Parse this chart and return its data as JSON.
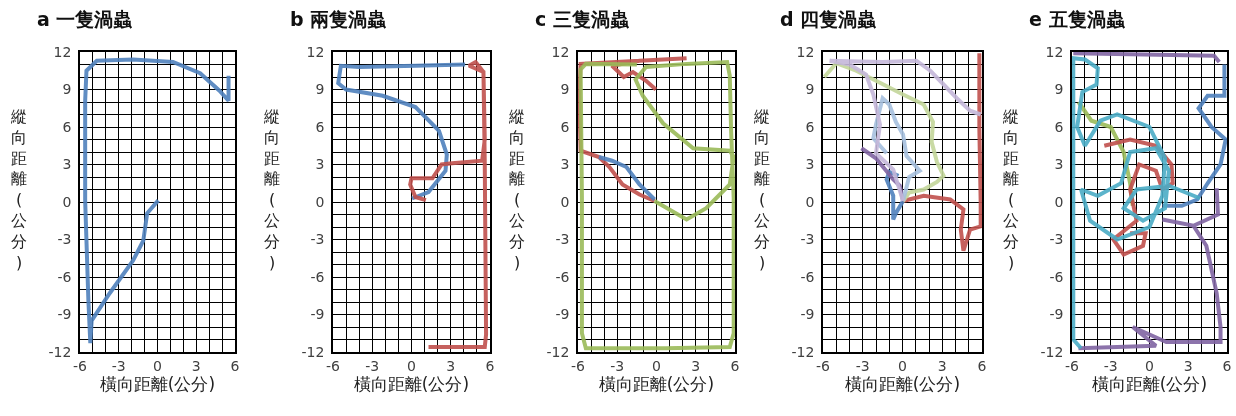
{
  "chart_data": [
    {
      "type": "line",
      "title": "a 一隻渦蟲",
      "xlabel": "橫向距離(公分)",
      "ylabel": "縱向距離(公分)",
      "xlim": [
        -6,
        6
      ],
      "ylim": [
        -12,
        12
      ],
      "xticks": [
        -6,
        -3,
        0,
        3,
        6
      ],
      "yticks": [
        -12,
        -9,
        -6,
        -3,
        0,
        3,
        6,
        9,
        12
      ],
      "grid": true,
      "series": [
        {
          "color": "#4f81bd",
          "x": [
            0.06,
            -0.8,
            -1.1,
            -1.9,
            -3.7,
            -5.1,
            -5.2,
            -5.35,
            -5.6,
            -5.6,
            -5.5,
            -4.7,
            -1.9,
            1.2,
            3.3,
            4.8,
            5.5,
            5.5
          ],
          "values": [
            0.13,
            -0.9,
            -3.1,
            -4.7,
            -7.3,
            -9.5,
            -11.3,
            -7.9,
            0.1,
            8.1,
            10.5,
            11.3,
            11.4,
            11.2,
            10.3,
            8.9,
            8.1,
            10.1
          ]
        }
      ]
    },
    {
      "type": "line",
      "title": "b 兩隻渦蟲",
      "xlabel": "橫向距離(公分)",
      "ylabel": "縱向距離(公分)",
      "xlim": [
        -6,
        6
      ],
      "ylim": [
        -12,
        12
      ],
      "xticks": [
        -6,
        -3,
        0,
        3,
        6
      ],
      "yticks": [
        -12,
        -9,
        -6,
        -3,
        0,
        3,
        6,
        9,
        12
      ],
      "grid": true,
      "series": [
        {
          "color": "#4f81bd",
          "x": [
            0.04,
            1.3,
            2.6,
            2.7,
            2.1,
            0.3,
            -2.2,
            -5.0,
            -5.6,
            -5.4,
            -4.0,
            0.3,
            4.1
          ],
          "values": [
            0.28,
            0.8,
            2.5,
            3.8,
            5.7,
            7.6,
            8.5,
            9.0,
            9.5,
            10.9,
            10.8,
            10.9,
            11.0
          ]
        },
        {
          "color": "#c0504d",
          "x": [
            1.1,
            0.3,
            -0.1,
            0.0,
            1.6,
            2.3,
            3.1,
            5.4,
            5.6,
            5.5,
            4.9,
            4.4,
            5.5,
            5.6,
            5.7,
            5.6,
            1.3
          ],
          "values": [
            0.15,
            0.4,
            1.4,
            1.9,
            1.9,
            3.0,
            3.1,
            3.3,
            5.0,
            10.4,
            11.2,
            10.9,
            10.4,
            3.0,
            -10.6,
            -11.6,
            -11.6
          ]
        }
      ]
    },
    {
      "type": "line",
      "title": "c 三隻渦蟲",
      "xlabel": "橫向距離(公分)",
      "ylabel": "縱向距離(公分)",
      "xlim": [
        -6,
        6
      ],
      "ylim": [
        -12,
        12
      ],
      "xticks": [
        -6,
        -3,
        0,
        3,
        6
      ],
      "yticks": [
        -12,
        -9,
        -6,
        -3,
        0,
        3,
        6,
        9,
        12
      ],
      "grid": true,
      "series": [
        {
          "color": "#c0504d",
          "x": [
            -0.15,
            -1.3,
            -2.6,
            -3.6,
            -4.4,
            -5.8,
            -5.9,
            -5.8,
            -1.3,
            2.3,
            -1.3,
            -3.4,
            -2.5,
            -1.8,
            -0.8,
            -0.05
          ],
          "values": [
            0.08,
            0.6,
            1.4,
            2.8,
            3.6,
            4.1,
            8.5,
            11.05,
            11.3,
            11.5,
            11.3,
            10.9,
            10.0,
            10.4,
            9.7,
            9.0
          ]
        },
        {
          "color": "#4f81bd",
          "x": [
            -0.15,
            -1.3,
            -2.3,
            -3.4,
            -4.4
          ],
          "values": [
            0.2,
            1.4,
            2.8,
            3.3,
            3.6
          ]
        },
        {
          "color": "#9bbb59",
          "x": [
            -0.15,
            2.3,
            3.8,
            5.6,
            5.9,
            5.6,
            2.8,
            0.5,
            -1.05,
            -1.6,
            -0.8,
            2.3,
            5.4,
            5.6,
            5.7,
            5.9,
            5.9,
            5.6,
            0.7,
            -5.4,
            -5.7,
            -5.7,
            -5.8,
            -5.4,
            -1.5
          ],
          "values": [
            0.08,
            -1.4,
            -0.5,
            1.4,
            3.6,
            4.1,
            4.3,
            6.3,
            8.5,
            9.8,
            10.8,
            11.05,
            11.2,
            10.1,
            5.8,
            0.35,
            -10.5,
            -11.6,
            -11.7,
            -11.7,
            -10.5,
            0.35,
            10.6,
            11.05,
            11.0
          ]
        }
      ]
    },
    {
      "type": "line",
      "title": "d 四隻渦蟲",
      "xlabel": "橫向距離(公分)",
      "ylabel": "縱向距離(公分)",
      "xlim": [
        -6,
        6
      ],
      "ylim": [
        -12,
        12
      ],
      "xticks": [
        -6,
        -3,
        0,
        3,
        6
      ],
      "yticks": [
        -12,
        -9,
        -6,
        -3,
        0,
        3,
        6,
        9,
        12
      ],
      "grid": true,
      "series": [
        {
          "color": "#c0504d",
          "x": [
            0.04,
            1.6,
            3.6,
            4.6,
            4.4,
            4.6,
            5.1,
            5.9,
            5.9,
            5.8,
            5.8
          ],
          "values": [
            0.08,
            0.5,
            0.2,
            -0.6,
            -2.2,
            -3.9,
            -2.2,
            -1.95,
            -0.06,
            5.9,
            11.9
          ]
        },
        {
          "color": "#4f81bd",
          "x": [
            0.04,
            -0.5,
            -0.7,
            -0.7,
            -1.2,
            -1.0,
            -0.3
          ],
          "values": [
            0.08,
            -0.9,
            -1.4,
            0.5,
            1.8,
            2.4,
            2.1
          ]
        },
        {
          "color": "#8064a2",
          "x": [
            0.04,
            -0.2,
            -0.7,
            -2.0,
            -3.1
          ],
          "values": [
            0.08,
            1.3,
            1.8,
            3.5,
            4.3
          ]
        },
        {
          "color": "#c4d79b",
          "x": [
            0.04,
            0.5,
            1.6,
            2.6,
            3.1,
            2.6,
            2.2,
            2.3,
            1.6,
            0.04,
            -2.0,
            -3.5,
            -5.0,
            -5.9
          ],
          "values": [
            0.08,
            0.75,
            1.0,
            1.6,
            2.1,
            3.2,
            4.8,
            6.4,
            7.8,
            8.6,
            9.7,
            10.5,
            11.1,
            10.0
          ]
        },
        {
          "color": "#a7c0de",
          "x": [
            0.04,
            0.5,
            1.3,
            0.3,
            0.04,
            -0.5,
            -1.0,
            -1.5,
            -2.0,
            -2.2,
            -1.2
          ],
          "values": [
            0.08,
            2.0,
            2.5,
            3.7,
            5.4,
            6.4,
            7.8,
            8.3,
            6.2,
            5.1,
            3.9
          ]
        },
        {
          "color": "#c5b8da",
          "x": [
            0.04,
            -0.7,
            -2.0,
            -1.7,
            -2.2,
            -2.75,
            -4.0,
            -5.5,
            -1.5,
            1.05,
            2.1,
            3.1,
            4.1,
            5.1,
            5.9
          ],
          "values": [
            0.08,
            2.6,
            3.9,
            6.2,
            8.6,
            10.2,
            11.0,
            11.3,
            11.2,
            11.3,
            10.5,
            9.4,
            8.3,
            7.3,
            7.0
          ]
        }
      ]
    },
    {
      "type": "line",
      "title": "e 五隻渦蟲",
      "xlabel": "橫向距離(公分)",
      "ylabel": "縱向距離(公分)",
      "xlim": [
        -6,
        6
      ],
      "ylim": [
        -12,
        12
      ],
      "xticks": [
        -6,
        -3,
        0,
        3,
        6
      ],
      "yticks": [
        -12,
        -9,
        -6,
        -3,
        0,
        3,
        6,
        9,
        12
      ],
      "grid": true,
      "series": [
        {
          "color": "#8064a2",
          "x": [
            -5.9,
            5.0,
            5.4,
            null,
            5.2,
            5.3,
            3.4,
            1.0,
            null,
            3.4,
            4.4,
            5.2,
            5.5,
            5.5,
            1.3,
            -1.3,
            0.5,
            -5.5
          ],
          "values": [
            11.9,
            11.7,
            11.2,
            null,
            1.1,
            -1.0,
            -1.9,
            -1.4,
            null,
            -1.9,
            -3.5,
            -7.3,
            -10.0,
            -11.2,
            -11.2,
            -10.0,
            -11.5,
            -11.7
          ]
        },
        {
          "color": "#9bbb59",
          "x": [
            -5.5,
            -4.5,
            -3.0,
            -2.0,
            -1.5,
            -1.3
          ],
          "values": [
            8.0,
            6.5,
            6.0,
            4.0,
            1.5,
            -0.3
          ]
        },
        {
          "color": "#c0504d",
          "x": [
            -3.5,
            -1.5,
            0.5,
            1.7,
            1.8,
            1.0,
            0.5,
            -0.8,
            -1.5,
            -1.0,
            -2.8,
            -2.0,
            -0.5,
            -0.3,
            -1.5
          ],
          "values": [
            4.5,
            5.0,
            4.5,
            3.0,
            1.5,
            1.0,
            2.5,
            3.0,
            1.0,
            -1.5,
            -3.0,
            -4.2,
            -3.5,
            -2.5,
            -2.5
          ]
        },
        {
          "color": "#4f81bd",
          "x": [
            5.8,
            5.8,
            4.5,
            3.8,
            4.8,
            5.9,
            5.5,
            4.5,
            3.7,
            2.5,
            1.0
          ],
          "values": [
            11.0,
            8.5,
            8.5,
            7.5,
            6.0,
            5.0,
            3.0,
            1.5,
            0.2,
            -0.3,
            -0.3
          ]
        },
        {
          "color": "#4bacc6",
          "x": [
            -5.3,
            -5.9,
            -5.9,
            -5.9,
            -5.0,
            -4.0,
            -4.1,
            -5.2,
            -5.6,
            -5.0,
            -3.8,
            -2.5,
            0.0,
            1.2,
            1.0,
            0.0,
            -2.5,
            -4.6,
            -5.3,
            -4.0,
            -2.2,
            -1.5,
            0.5,
            1.5,
            1.2,
            -0.5,
            -2.0,
            -1.0,
            1.5,
            3.9
          ],
          "values": [
            -11.7,
            -11.0,
            0.0,
            11.5,
            11.4,
            10.7,
            9.4,
            8.8,
            6.0,
            4.5,
            6.5,
            7.0,
            6.0,
            3.5,
            0.5,
            -2.0,
            -3.0,
            -1.5,
            1.0,
            0.5,
            1.5,
            4.0,
            4.3,
            2.5,
            -0.5,
            -1.5,
            -0.5,
            1.0,
            1.3,
            0.3
          ]
        }
      ]
    }
  ]
}
